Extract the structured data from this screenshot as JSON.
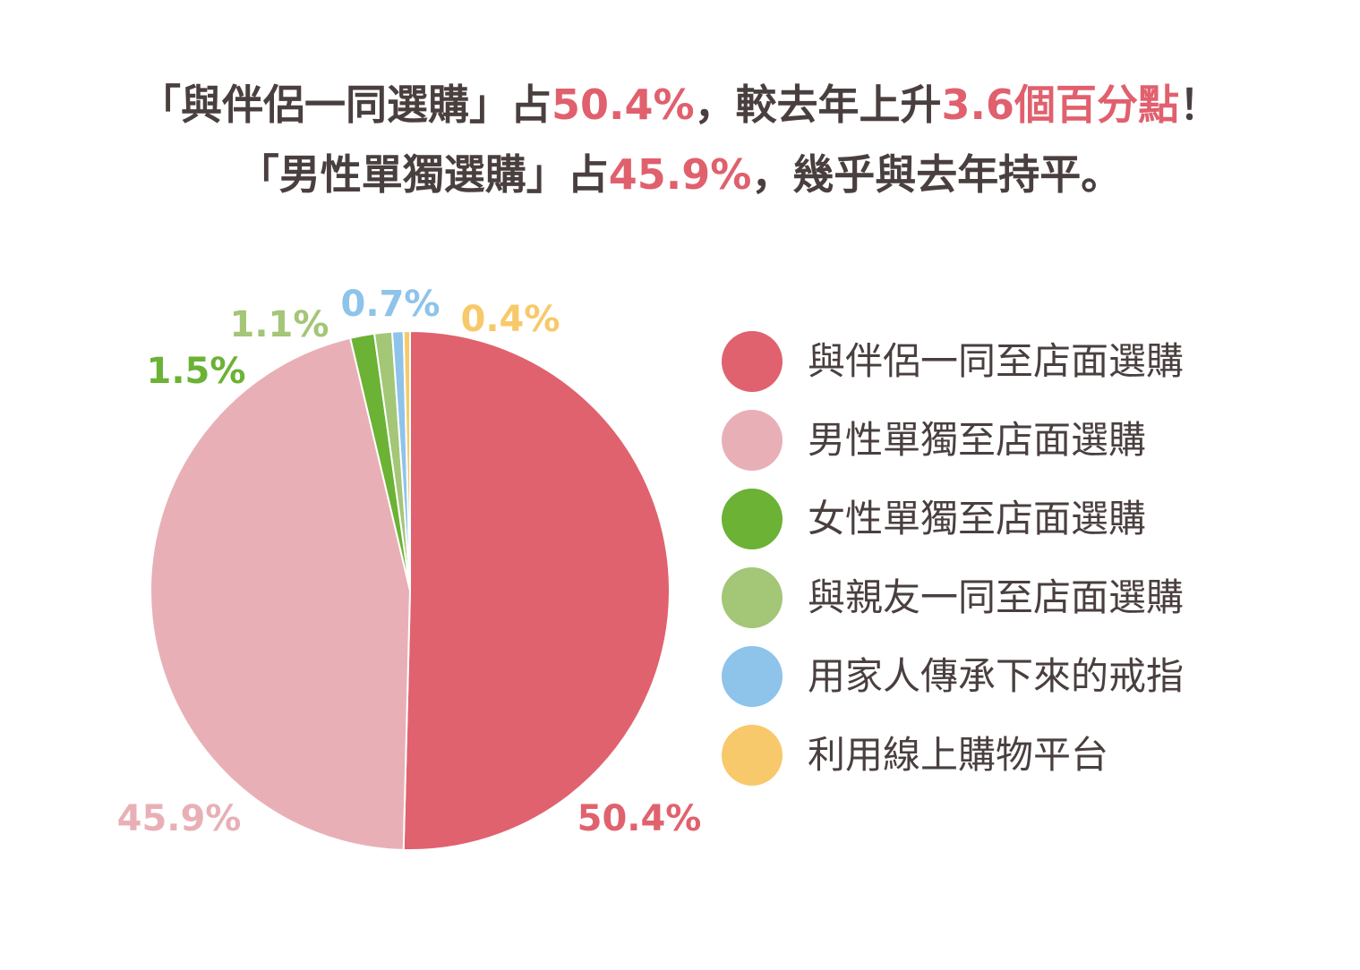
{
  "headline": {
    "line1": {
      "part1": "「與伴侶一同選購」占",
      "highlight1": "50.4%",
      "part2": "，較去年上升",
      "highlight2": "3.6個百分點",
      "part3": "！"
    },
    "line2": {
      "part1": "「男性單獨選購」占",
      "highlight1": "45.9%",
      "part2": "，幾乎與去年持平。"
    }
  },
  "chart_data": {
    "type": "pie",
    "unit": "%",
    "legend_position": "right",
    "slices": [
      {
        "label": "與伴侶一同至店面選購",
        "value": 50.4,
        "value_label": "50.4%",
        "color": "#e0626e"
      },
      {
        "label": "男性單獨至店面選購",
        "value": 45.9,
        "value_label": "45.9%",
        "color": "#e8b0b6"
      },
      {
        "label": "女性單獨至店面選購",
        "value": 1.5,
        "value_label": "1.5%",
        "color": "#6bb235"
      },
      {
        "label": "與親友一同至店面選購",
        "value": 1.1,
        "value_label": "1.1%",
        "color": "#a3c677"
      },
      {
        "label": "用家人傳承下來的戒指",
        "value": 0.7,
        "value_label": "0.7%",
        "color": "#8ec3ea"
      },
      {
        "label": "利用線上購物平台",
        "value": 0.4,
        "value_label": "0.4%",
        "color": "#f7c96a"
      }
    ]
  }
}
